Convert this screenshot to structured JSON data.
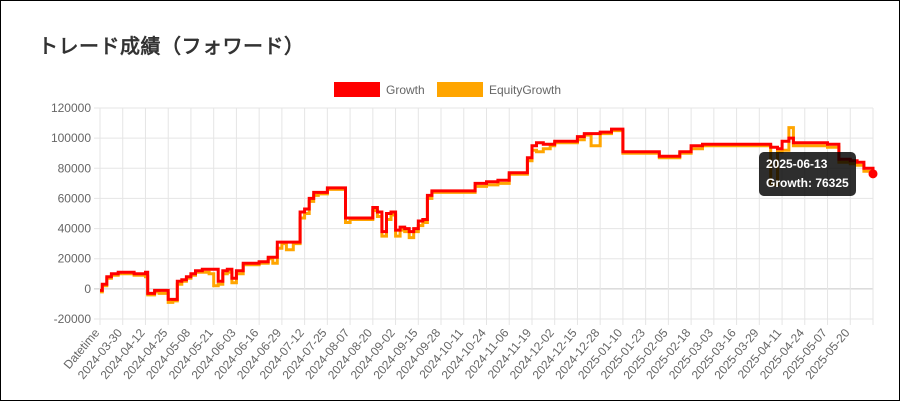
{
  "title": "トレード成績（フォワード）",
  "colors": {
    "growth": "#ff0000",
    "equity": "#ffa500",
    "grid": "#e5e5e5",
    "tooltip_bg": "#000000"
  },
  "chart_data": {
    "type": "line",
    "legend": {
      "position": "top-center",
      "entries": [
        "Growth",
        "EquityGrowth"
      ]
    },
    "grid": true,
    "ylim": [
      -20000,
      120000
    ],
    "yticks": [
      "120000",
      "100000",
      "80000",
      "60000",
      "40000",
      "20000",
      "0",
      "-20000"
    ],
    "x_labels": [
      "Datetime",
      "2024-03-30",
      "2024-04-12",
      "2024-04-25",
      "2024-05-08",
      "2024-05-21",
      "2024-06-03",
      "2024-06-16",
      "2024-06-29",
      "2024-07-12",
      "2024-07-25",
      "2024-08-07",
      "2024-08-20",
      "2024-09-02",
      "2024-09-15",
      "2024-09-28",
      "2024-10-11",
      "2024-10-24",
      "2024-11-06",
      "2024-11-19",
      "2024-12-02",
      "2024-12-15",
      "2024-12-28",
      "2025-01-10",
      "2025-01-23",
      "2025-02-05",
      "2025-02-18",
      "2025-03-03",
      "2025-03-16",
      "2025-03-29",
      "2025-04-11",
      "2025-04-24",
      "2025-05-07",
      "2025-05-20",
      ""
    ],
    "series": [
      {
        "name": "Growth",
        "x": [
          0,
          0.1,
          0.3,
          0.5,
          0.8,
          1.0,
          1.3,
          1.5,
          1.8,
          2.0,
          2.1,
          2.4,
          2.6,
          2.8,
          3.0,
          3.2,
          3.4,
          3.6,
          3.8,
          4.0,
          4.2,
          4.5,
          4.8,
          5.0,
          5.2,
          5.4,
          5.6,
          5.8,
          6.0,
          6.3,
          6.6,
          7.0,
          7.2,
          7.4,
          7.6,
          7.8,
          8.0,
          8.2,
          8.5,
          8.8,
          9.0,
          9.2,
          9.4,
          9.6,
          9.8,
          10.0,
          10.2,
          10.4,
          10.6,
          10.8,
          11.0,
          11.2,
          11.5,
          11.8,
          12.0,
          12.2,
          12.4,
          12.6,
          12.8,
          13.0,
          13.2,
          13.4,
          13.6,
          13.8,
          14.0,
          14.2,
          14.4,
          14.6,
          14.8,
          15.0,
          15.2,
          15.4,
          15.5,
          15.6,
          15.8,
          16.0,
          16.5,
          17.0,
          17.5,
          18.0,
          18.2,
          18.5,
          18.8,
          19.0,
          19.2,
          19.5,
          19.8,
          20.0,
          20.2,
          20.5,
          20.8,
          21.0,
          21.3,
          21.6,
          22.0,
          22.5,
          23.0,
          23.2,
          23.5,
          24.0,
          24.3,
          24.6,
          25.0,
          25.5,
          26.0,
          26.5,
          27.0,
          27.3,
          27.6,
          28.0,
          28.5,
          29.0,
          29.5,
          29.8,
          30.0,
          30.3,
          30.5,
          30.8,
          31.0,
          31.3,
          31.6,
          32.0,
          32.5,
          33.0,
          33.3,
          33.6,
          34.0
        ],
        "y": [
          -1000,
          3000,
          8000,
          10000,
          11000,
          11000,
          11000,
          10000,
          10000,
          11000,
          -3000,
          -1000,
          -1000,
          -1000,
          -7000,
          -7000,
          5000,
          6000,
          8000,
          10000,
          12000,
          13000,
          13000,
          13000,
          5000,
          12000,
          13000,
          7000,
          12000,
          17000,
          17000,
          18000,
          18000,
          21000,
          21000,
          31000,
          31000,
          31000,
          31000,
          51000,
          53000,
          60000,
          64000,
          64000,
          64000,
          67000,
          67000,
          67000,
          67000,
          47000,
          47000,
          47000,
          47000,
          47000,
          54000,
          51000,
          38000,
          50000,
          51000,
          39000,
          41000,
          40000,
          38000,
          40000,
          45000,
          46000,
          62000,
          65000,
          65000,
          65000,
          65000,
          65000,
          65000,
          65000,
          65000,
          65000,
          70000,
          71000,
          72000,
          77000,
          77000,
          77000,
          87000,
          95000,
          97000,
          96000,
          96000,
          98000,
          98000,
          98000,
          98000,
          101000,
          103000,
          103000,
          104000,
          106000,
          91000,
          91000,
          91000,
          91000,
          91000,
          88000,
          88000,
          91000,
          95000,
          96000,
          96000,
          96000,
          96000,
          96000,
          96000,
          96000,
          94000,
          93000,
          98000,
          100000,
          97000,
          97000,
          97000,
          97000,
          97000,
          96000,
          86000,
          85000,
          84000,
          80000,
          76325
        ]
      },
      {
        "name": "EquityGrowth",
        "x": [
          0,
          0.1,
          0.3,
          0.5,
          0.8,
          1.0,
          1.3,
          1.5,
          1.8,
          2.0,
          2.1,
          2.4,
          2.6,
          2.8,
          3.0,
          3.2,
          3.4,
          3.6,
          3.8,
          4.0,
          4.2,
          4.5,
          4.8,
          5.0,
          5.2,
          5.4,
          5.6,
          5.8,
          6.0,
          6.3,
          6.6,
          7.0,
          7.2,
          7.4,
          7.6,
          7.8,
          8.0,
          8.2,
          8.5,
          8.8,
          9.0,
          9.2,
          9.4,
          9.6,
          9.8,
          10.0,
          10.2,
          10.4,
          10.6,
          10.8,
          11.0,
          11.2,
          11.5,
          11.8,
          12.0,
          12.2,
          12.4,
          12.6,
          12.8,
          13.0,
          13.2,
          13.4,
          13.6,
          13.8,
          14.0,
          14.2,
          14.4,
          14.6,
          14.8,
          15.0,
          15.2,
          15.4,
          15.5,
          15.6,
          15.8,
          16.0,
          16.5,
          17.0,
          17.5,
          18.0,
          18.2,
          18.5,
          18.8,
          19.0,
          19.2,
          19.5,
          19.8,
          20.0,
          20.2,
          20.5,
          20.8,
          21.0,
          21.3,
          21.6,
          22.0,
          22.5,
          23.0,
          23.2,
          23.5,
          24.0,
          24.3,
          24.6,
          25.0,
          25.5,
          26.0,
          26.5,
          27.0,
          27.3,
          27.6,
          28.0,
          28.5,
          29.0,
          29.5,
          29.8,
          30.0,
          30.3,
          30.5,
          30.8,
          31.0,
          31.3,
          31.6,
          32.0,
          32.5,
          33.0,
          33.3,
          33.6,
          34.0
        ],
        "y": [
          -2000,
          2000,
          7000,
          9000,
          10000,
          10000,
          10000,
          9000,
          9000,
          8000,
          -4000,
          -2000,
          -3000,
          -3000,
          -9000,
          -8000,
          3000,
          5000,
          7000,
          9000,
          11000,
          11000,
          10000,
          2000,
          3000,
          10000,
          11000,
          4000,
          10000,
          16000,
          16000,
          17000,
          17000,
          20000,
          17000,
          27000,
          30000,
          26000,
          30000,
          47000,
          50000,
          58000,
          62000,
          63000,
          63000,
          66000,
          66000,
          66000,
          66000,
          44000,
          46000,
          46000,
          46000,
          46000,
          52000,
          48000,
          35000,
          46000,
          49000,
          35000,
          39000,
          38000,
          34000,
          38000,
          42000,
          44000,
          60000,
          64000,
          64000,
          64000,
          64000,
          64000,
          64000,
          64000,
          64000,
          64000,
          68000,
          69000,
          70000,
          76000,
          76000,
          76000,
          85000,
          92000,
          91000,
          93000,
          95000,
          97000,
          97000,
          97000,
          97000,
          99000,
          102000,
          95000,
          103000,
          105000,
          90000,
          90000,
          90000,
          90000,
          90000,
          87000,
          87000,
          90000,
          93000,
          95000,
          95000,
          95000,
          95000,
          95000,
          95000,
          95000,
          69000,
          91000,
          92000,
          107000,
          95000,
          95000,
          95000,
          95000,
          95000,
          94000,
          84000,
          83000,
          82000,
          78000,
          74000
        ]
      }
    ],
    "tooltip": {
      "title": "2025-06-13",
      "line": "Growth: 76325"
    }
  }
}
